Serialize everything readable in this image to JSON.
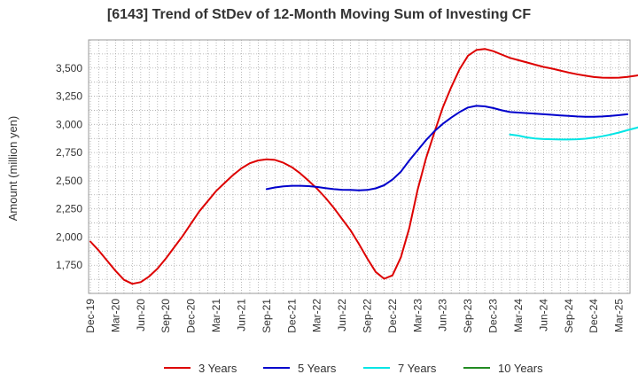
{
  "chart_data": {
    "type": "line",
    "title": "[6143]  Trend of StDev of 12-Month Moving Sum of Investing CF",
    "ylabel": "Amount (million yen)",
    "xlabel": "",
    "ylim": [
      1500,
      3750
    ],
    "yticks": [
      "3,500",
      "3,250",
      "3,000",
      "2,750",
      "2,500",
      "2,250",
      "2,000",
      "1,750"
    ],
    "ytick_values": [
      3500,
      3250,
      3000,
      2750,
      2500,
      2250,
      2000,
      1750
    ],
    "xticks": [
      "Dec-19",
      "Mar-20",
      "Jun-20",
      "Sep-20",
      "Dec-20",
      "Mar-21",
      "Jun-21",
      "Sep-21",
      "Dec-21",
      "Mar-22",
      "Jun-22",
      "Sep-22",
      "Dec-22",
      "Mar-23",
      "Jun-23",
      "Sep-23",
      "Dec-23",
      "Mar-24",
      "Jun-24",
      "Sep-24",
      "Dec-24",
      "Mar-25"
    ],
    "grid": true,
    "legend_position": "bottom",
    "series": [
      {
        "name": "3 Years",
        "color": "#dd0000",
        "start_month": 0,
        "values": [
          1960,
          1880,
          1790,
          1700,
          1620,
          1585,
          1600,
          1650,
          1720,
          1810,
          1910,
          2010,
          2120,
          2230,
          2320,
          2410,
          2480,
          2550,
          2610,
          2655,
          2680,
          2690,
          2685,
          2660,
          2620,
          2565,
          2500,
          2430,
          2350,
          2260,
          2160,
          2060,
          1940,
          1810,
          1690,
          1630,
          1660,
          1820,
          2080,
          2420,
          2700,
          2930,
          3150,
          3330,
          3490,
          3610,
          3660,
          3670,
          3650,
          3620,
          3590,
          3570,
          3550,
          3530,
          3510,
          3495,
          3478,
          3460,
          3445,
          3432,
          3420,
          3415,
          3413,
          3415,
          3422,
          3432,
          3445
        ]
      },
      {
        "name": "5 Years",
        "color": "#0000cc",
        "start_month": 21,
        "values": [
          2425,
          2440,
          2450,
          2455,
          2455,
          2452,
          2445,
          2435,
          2425,
          2420,
          2418,
          2415,
          2418,
          2432,
          2460,
          2510,
          2580,
          2680,
          2770,
          2860,
          2940,
          3005,
          3060,
          3110,
          3150,
          3165,
          3160,
          3145,
          3125,
          3110,
          3105,
          3100,
          3095,
          3090,
          3085,
          3080,
          3075,
          3070,
          3068,
          3068,
          3070,
          3075,
          3082,
          3090
        ]
      },
      {
        "name": "7 Years",
        "color": "#00e5e5",
        "start_month": 50,
        "values": [
          2910,
          2900,
          2885,
          2875,
          2870,
          2868,
          2866,
          2866,
          2868,
          2873,
          2882,
          2895,
          2910,
          2928,
          2948,
          2968,
          2990,
          3010
        ]
      },
      {
        "name": "10 Years",
        "color": "#228b22",
        "start_month": 0,
        "values": []
      }
    ]
  }
}
